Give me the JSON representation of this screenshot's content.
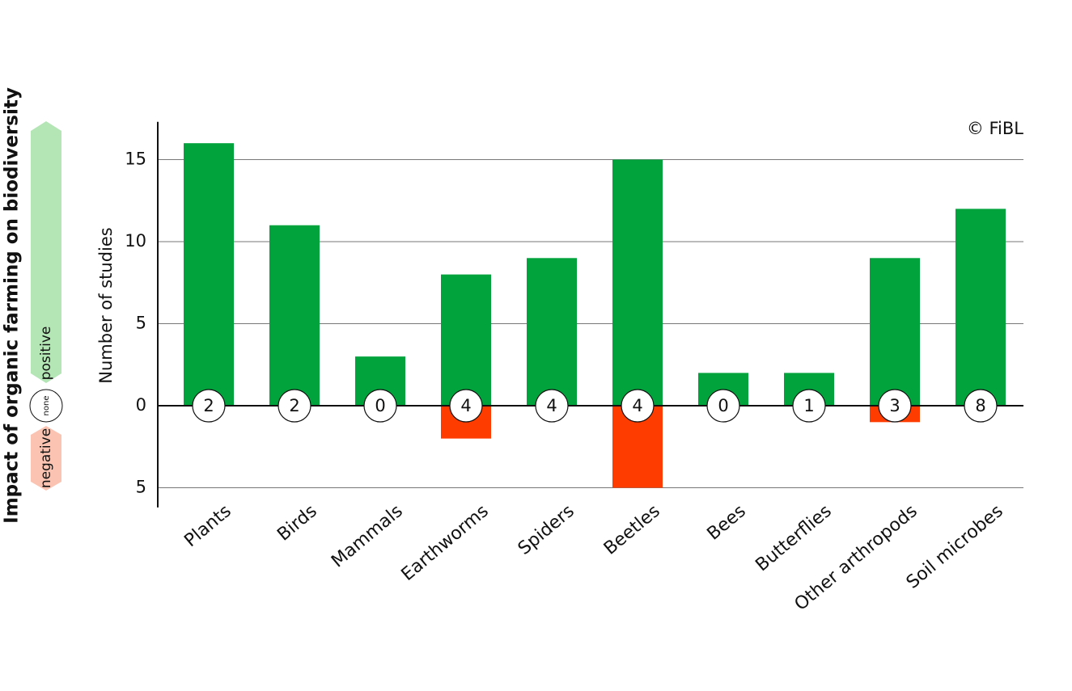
{
  "chart_data": {
    "type": "bar",
    "title": "Impact of organic farming on biodiversity",
    "y_label": "Number of studies",
    "annotation": "© FiBL",
    "categories": [
      "Plants",
      "Birds",
      "Mammals",
      "Earthworms",
      "Spiders",
      "Beetles",
      "Bees",
      "Butterflies",
      "Other arthropods",
      "Soil microbes"
    ],
    "series": [
      {
        "name": "positive",
        "color": "#00a33c",
        "legend_color": "#b3e5b5",
        "values": [
          16,
          11,
          3,
          8,
          9,
          15,
          2,
          2,
          9,
          12
        ]
      },
      {
        "name": "negative",
        "color": "#ff3c00",
        "legend_color": "#fbc4b2",
        "values": [
          0,
          0,
          0,
          -2,
          0,
          -5,
          0,
          0,
          -1,
          0
        ]
      },
      {
        "name": "none",
        "color": "#ffffff",
        "values": [
          2,
          2,
          0,
          4,
          4,
          4,
          0,
          1,
          3,
          8
        ]
      }
    ],
    "ylim": [
      -6.2,
      17.3
    ],
    "yticks": [
      {
        "value": -5,
        "label": "5"
      },
      0,
      5,
      10,
      15
    ],
    "grid": true
  }
}
